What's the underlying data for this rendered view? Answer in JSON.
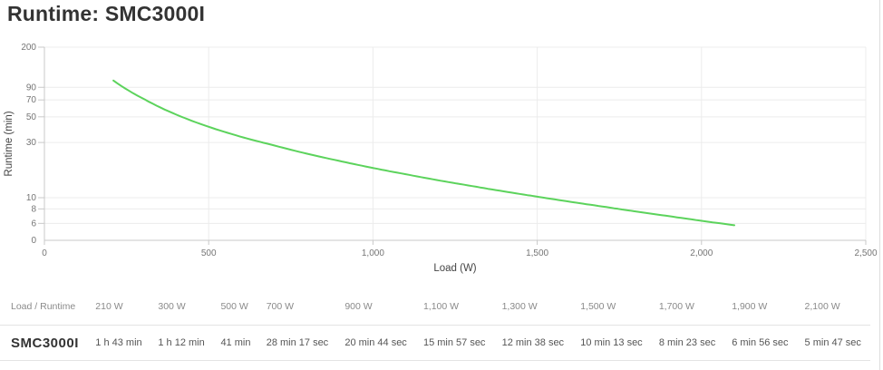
{
  "page": {
    "title": "Runtime: SMC3000I"
  },
  "chart_data": {
    "type": "line",
    "title": "Runtime: SMC3000I",
    "xlabel": "Load (W)",
    "ylabel": "Runtime (min)",
    "grid": true,
    "legend_position": "none",
    "x_axis": {
      "min": 0,
      "max": 2500,
      "ticks": [
        {
          "v": 0,
          "label": "0"
        },
        {
          "v": 500,
          "label": "500"
        },
        {
          "v": 1000,
          "label": "1,000"
        },
        {
          "v": 1500,
          "label": "1,500"
        },
        {
          "v": 2000,
          "label": "2,000"
        },
        {
          "v": 2500,
          "label": "2,500"
        }
      ]
    },
    "y_axis": {
      "scale": "log",
      "top_value": 200,
      "bottom_label": "0",
      "ticks": [
        {
          "v": 200,
          "label": "200"
        },
        {
          "v": 90,
          "label": "90"
        },
        {
          "v": 70,
          "label": "70"
        },
        {
          "v": 50,
          "label": "50"
        },
        {
          "v": 30,
          "label": "30"
        },
        {
          "v": 10,
          "label": "10"
        },
        {
          "v": 8,
          "label": "8"
        },
        {
          "v": 6,
          "label": "6"
        }
      ]
    },
    "series": [
      {
        "name": "SMC3000I",
        "color": "#5cd35c",
        "points_w_min": [
          [
            210,
            103
          ],
          [
            300,
            72
          ],
          [
            500,
            41
          ],
          [
            700,
            28.283
          ],
          [
            900,
            20.733
          ],
          [
            1100,
            15.95
          ],
          [
            1300,
            12.633
          ],
          [
            1500,
            10.217
          ],
          [
            1700,
            8.383
          ],
          [
            1900,
            6.933
          ],
          [
            2100,
            5.783
          ]
        ]
      }
    ]
  },
  "table": {
    "header": [
      "Load / Runtime",
      "210 W",
      "300 W",
      "500 W",
      "700 W",
      "900 W",
      "1,100 W",
      "1,300 W",
      "1,500 W",
      "1,700 W",
      "1,900 W",
      "2,100 W"
    ],
    "rows": [
      {
        "label": "SMC3000I",
        "values": [
          "1 h 43 min",
          "1 h 12 min",
          "41 min",
          "28 min 17 sec",
          "20 min 44 sec",
          "15 min 57 sec",
          "12 min 38 sec",
          "10 min 13 sec",
          "8 min 23 sec",
          "6 min 56 sec",
          "5 min 47 sec"
        ]
      }
    ]
  },
  "colors": {
    "line": "#5cd35c",
    "grid": "#ececec",
    "axis": "#c9c9c9",
    "tick_label": "#757575",
    "axis_title": "#444444",
    "title": "#333333",
    "table_header": "#8a8a8a",
    "table_value": "#555555",
    "table_row_label": "#333333",
    "divider": "#e3e3e3",
    "page_border": "#dddddd"
  }
}
